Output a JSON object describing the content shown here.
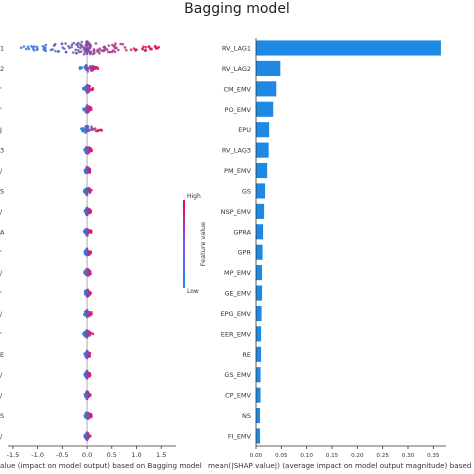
{
  "figure_title": "Bagging model",
  "chart_data": [
    {
      "type": "scatter",
      "subtype": "shap-beeswarm",
      "xlabel": "SHAP value (impact on model output) based on Bagging model",
      "xlim": [
        -1.6,
        1.8
      ],
      "xticks": [
        -1.5,
        -1.0,
        -0.5,
        0.0,
        0.5,
        1.0,
        1.5
      ],
      "xtick_labels": [
        "-1.5",
        "-1.0",
        "-0.5",
        "0.0",
        "0.5",
        "1.0",
        "1.5"
      ],
      "row_labels": [
        "1",
        "2",
        "'",
        "'",
        "J",
        "3",
        "/",
        "S",
        "/",
        "A",
        "'",
        "/",
        "'",
        "/",
        "'",
        "E",
        "/",
        "/",
        "S",
        "/"
      ],
      "rows_spread": [
        {
          "min": -1.35,
          "max": 1.55
        },
        {
          "min": -0.15,
          "max": 0.25
        },
        {
          "min": -0.08,
          "max": 0.12
        },
        {
          "min": -0.08,
          "max": 0.1
        },
        {
          "min": -0.12,
          "max": 0.32
        },
        {
          "min": -0.06,
          "max": 0.1
        },
        {
          "min": -0.05,
          "max": 0.08
        },
        {
          "min": -0.06,
          "max": 0.1
        },
        {
          "min": -0.05,
          "max": 0.08
        },
        {
          "min": -0.06,
          "max": 0.09
        },
        {
          "min": -0.05,
          "max": 0.08
        },
        {
          "min": -0.06,
          "max": 0.09
        },
        {
          "min": -0.05,
          "max": 0.08
        },
        {
          "min": -0.06,
          "max": 0.1
        },
        {
          "min": -0.08,
          "max": 0.12
        },
        {
          "min": -0.05,
          "max": 0.08
        },
        {
          "min": -0.05,
          "max": 0.07
        },
        {
          "min": -0.05,
          "max": 0.08
        },
        {
          "min": -0.05,
          "max": 0.1
        },
        {
          "min": -0.05,
          "max": 0.07
        }
      ],
      "colorbar": {
        "label": "Feature value",
        "high": "High",
        "low": "Low",
        "colors": [
          "#1e88e5",
          "#ff0052"
        ]
      },
      "grid": false
    },
    {
      "type": "bar",
      "orientation": "horizontal",
      "xlabel": "mean(|SHAP value|) (average impact on model output magnitude) based on Bagging model",
      "xlim": [
        0,
        0.375
      ],
      "xticks": [
        0.0,
        0.05,
        0.1,
        0.15,
        0.2,
        0.25,
        0.3,
        0.35
      ],
      "xtick_labels": [
        "0.00",
        "0.05",
        "0.10",
        "0.15",
        "0.20",
        "0.25",
        "0.30",
        "0.35"
      ],
      "categories": [
        "RV_LAG1",
        "RV_LAG2",
        "CM_EMV",
        "PO_EMV",
        "EPU",
        "RV_LAG3",
        "PM_EMV",
        "GS",
        "NSP_EMV",
        "GPRA",
        "GPR",
        "MP_EMV",
        "GE_EMV",
        "EPG_EMV",
        "EER_EMV",
        "RE",
        "GS_EMV",
        "CP_EMV",
        "NS",
        "FI_EMV"
      ],
      "values": [
        0.365,
        0.048,
        0.04,
        0.034,
        0.026,
        0.025,
        0.022,
        0.018,
        0.016,
        0.014,
        0.013,
        0.012,
        0.012,
        0.011,
        0.01,
        0.01,
        0.009,
        0.009,
        0.008,
        0.008
      ],
      "color": "#1e88e5",
      "grid": false
    }
  ]
}
